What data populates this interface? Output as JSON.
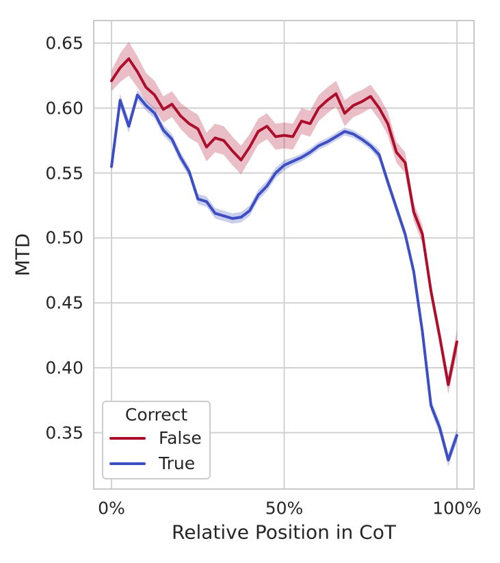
{
  "figure": {
    "background": "#ffffff",
    "text_color": "#262626",
    "grid_color": "#d2d2d2",
    "spine_color": "#c9c9c9"
  },
  "chart_data": {
    "type": "line",
    "title": "",
    "xlabel": "Relative Position in CoT",
    "ylabel": "MTD",
    "grid": true,
    "xlim_percent": [
      -5,
      105
    ],
    "ylim": [
      0.307,
      0.667
    ],
    "xticks": {
      "positions": [
        0,
        50,
        100
      ],
      "labels": [
        "0%",
        "50%",
        "100%"
      ]
    },
    "yticks": {
      "positions": [
        0.65,
        0.6,
        0.55,
        0.5,
        0.45,
        0.4,
        0.35
      ],
      "labels": [
        "0.65",
        "0.60",
        "0.55",
        "0.50",
        "0.45",
        "0.40",
        "0.35"
      ]
    },
    "x": [
      0,
      2.5,
      5,
      7.5,
      10,
      12.5,
      15,
      17.5,
      20,
      22.5,
      25,
      27.5,
      30,
      32.5,
      35,
      37.5,
      40,
      42.5,
      45,
      47.5,
      50,
      52.5,
      55,
      57.5,
      60,
      62.5,
      65,
      67.5,
      70,
      72.5,
      75,
      77.5,
      80,
      82.5,
      85,
      87.5,
      90,
      92.5,
      95,
      97.5,
      100
    ],
    "series": [
      {
        "name": "False",
        "color": "#ad0e2c",
        "band_opacity": 0.27,
        "values": [
          0.621,
          0.631,
          0.638,
          0.628,
          0.616,
          0.61,
          0.599,
          0.603,
          0.594,
          0.588,
          0.584,
          0.57,
          0.577,
          0.575,
          0.567,
          0.56,
          0.57,
          0.582,
          0.586,
          0.578,
          0.579,
          0.578,
          0.59,
          0.588,
          0.6,
          0.606,
          0.611,
          0.596,
          0.602,
          0.605,
          0.609,
          0.6,
          0.588,
          0.566,
          0.558,
          0.52,
          0.503,
          0.459,
          0.424,
          0.387,
          0.42
        ],
        "ci": [
          0.008,
          0.011,
          0.013,
          0.012,
          0.011,
          0.011,
          0.01,
          0.01,
          0.01,
          0.011,
          0.011,
          0.011,
          0.011,
          0.011,
          0.011,
          0.011,
          0.01,
          0.01,
          0.01,
          0.01,
          0.01,
          0.01,
          0.01,
          0.01,
          0.01,
          0.01,
          0.01,
          0.01,
          0.009,
          0.009,
          0.009,
          0.009,
          0.009,
          0.008,
          0.008,
          0.007,
          0.007,
          0.006,
          0.006,
          0.007,
          0.009
        ]
      },
      {
        "name": "True",
        "color": "#3c4ec2",
        "band_opacity": 0.27,
        "values": [
          0.555,
          0.606,
          0.586,
          0.61,
          0.602,
          0.596,
          0.583,
          0.576,
          0.562,
          0.551,
          0.53,
          0.528,
          0.519,
          0.517,
          0.515,
          0.516,
          0.521,
          0.533,
          0.54,
          0.55,
          0.556,
          0.559,
          0.562,
          0.566,
          0.571,
          0.574,
          0.578,
          0.582,
          0.58,
          0.576,
          0.571,
          0.564,
          0.543,
          0.523,
          0.503,
          0.474,
          0.428,
          0.371,
          0.354,
          0.329,
          0.348
        ],
        "ci": [
          0.004,
          0.005,
          0.005,
          0.004,
          0.004,
          0.004,
          0.004,
          0.004,
          0.004,
          0.004,
          0.004,
          0.004,
          0.004,
          0.004,
          0.004,
          0.004,
          0.004,
          0.004,
          0.004,
          0.004,
          0.004,
          0.003,
          0.003,
          0.003,
          0.003,
          0.003,
          0.003,
          0.003,
          0.003,
          0.003,
          0.003,
          0.004,
          0.004,
          0.004,
          0.004,
          0.004,
          0.004,
          0.004,
          0.005,
          0.005,
          0.005
        ]
      }
    ],
    "legend": {
      "title": "Correct",
      "position": "lower left",
      "entries": [
        {
          "label": "False",
          "color": "#ad0e2c"
        },
        {
          "label": "True",
          "color": "#3c4ec2"
        }
      ]
    }
  }
}
